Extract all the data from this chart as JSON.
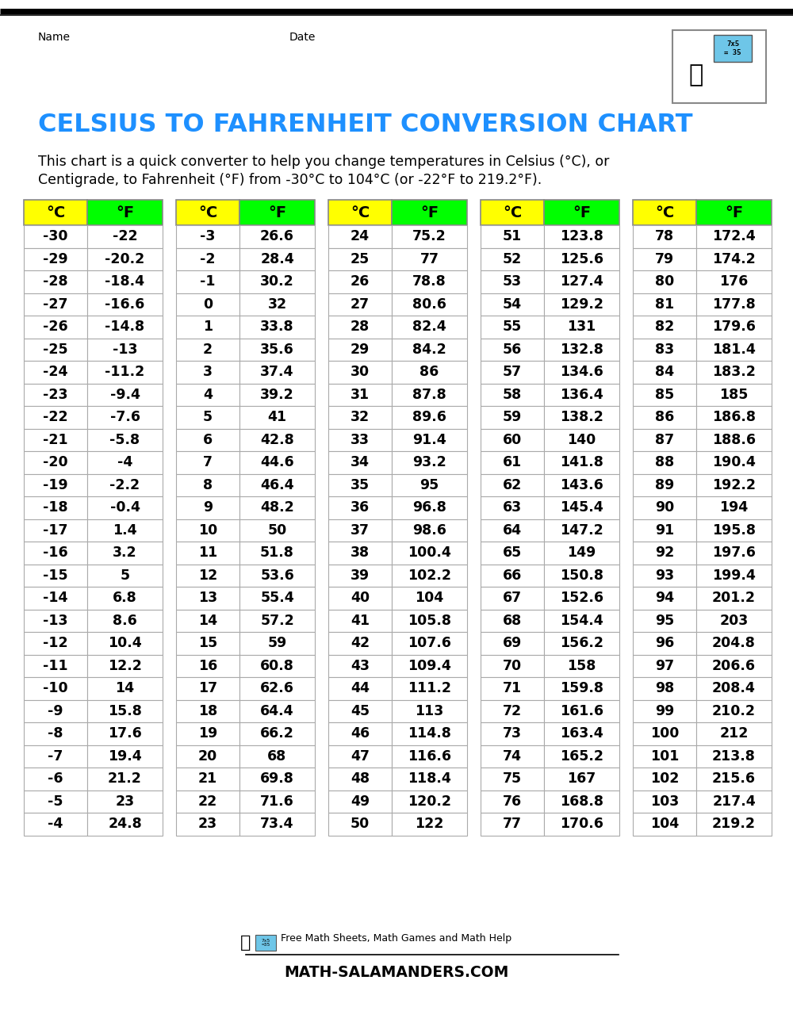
{
  "title": "CELSIUS TO FAHRENHEIT CONVERSION CHART",
  "title_color": "#1E90FF",
  "description_line1": "This chart is a quick converter to help you change temperatures in Celsius (°C), or",
  "description_line2": "Centigrade, to Fahrenheit (°F) from -30°C to 104°C (or -22°F to 219.2°F).",
  "header_c_color": "#FFFF00",
  "header_f_color": "#00FF00",
  "col_header_c": "°C",
  "col_header_f": "°F",
  "background_color": "#FFFFFF",
  "border_color": "#AAAAAA",
  "text_color": "#000000",
  "name_label": "Name",
  "date_label": "Date",
  "footer_text1": "Free Math Sheets, Math Games and Math Help",
  "footer_text2": "ATH-SALAMANDERS.COM"
}
